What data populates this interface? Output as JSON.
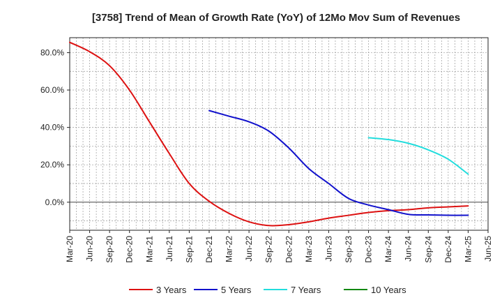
{
  "chart_data": {
    "type": "line",
    "title": "[3758]  Trend of Mean of Growth Rate (YoY) of 12Mo Mov Sum of Revenues",
    "xlabel": "",
    "ylabel": "",
    "ylim": [
      -15,
      88
    ],
    "grid": true,
    "legend_position": "bottom",
    "categories": [
      "Mar-20",
      "Jun-20",
      "Sep-20",
      "Dec-20",
      "Mar-21",
      "Jun-21",
      "Sep-21",
      "Dec-21",
      "Mar-22",
      "Jun-22",
      "Sep-22",
      "Dec-22",
      "Mar-23",
      "Jun-23",
      "Sep-23",
      "Dec-23",
      "Mar-24",
      "Jun-24",
      "Sep-24",
      "Dec-24",
      "Mar-25",
      "Jun-25"
    ],
    "y_ticks": [
      0,
      20,
      40,
      60,
      80
    ],
    "y_tick_labels": [
      "0.0%",
      "20.0%",
      "40.0%",
      "60.0%",
      "80.0%"
    ],
    "series": [
      {
        "name": "3 Years",
        "color": "#dd1111",
        "values": [
          85.5,
          80.5,
          73.0,
          60.0,
          43.0,
          26.0,
          10.0,
          0.5,
          -6.0,
          -10.5,
          -12.5,
          -12.0,
          -10.5,
          -8.5,
          -7.0,
          -5.5,
          -4.5,
          -4.0,
          -3.0,
          -2.5,
          -2.0,
          null
        ]
      },
      {
        "name": "5 Years",
        "color": "#1111cc",
        "values": [
          null,
          null,
          null,
          null,
          null,
          null,
          null,
          49.0,
          46.0,
          43.0,
          38.0,
          29.0,
          18.0,
          10.0,
          2.0,
          -1.5,
          -4.0,
          -6.5,
          -6.8,
          -7.0,
          -7.0,
          null
        ]
      },
      {
        "name": "7 Years",
        "color": "#22dddd",
        "values": [
          null,
          null,
          null,
          null,
          null,
          null,
          null,
          null,
          null,
          null,
          null,
          null,
          null,
          null,
          null,
          34.5,
          33.5,
          31.5,
          28.0,
          23.0,
          15.0,
          null
        ]
      },
      {
        "name": "10 Years",
        "color": "#118811",
        "values": [
          null,
          null,
          null,
          null,
          null,
          null,
          null,
          null,
          null,
          null,
          null,
          null,
          null,
          null,
          null,
          null,
          null,
          null,
          null,
          null,
          null,
          null
        ]
      }
    ]
  }
}
